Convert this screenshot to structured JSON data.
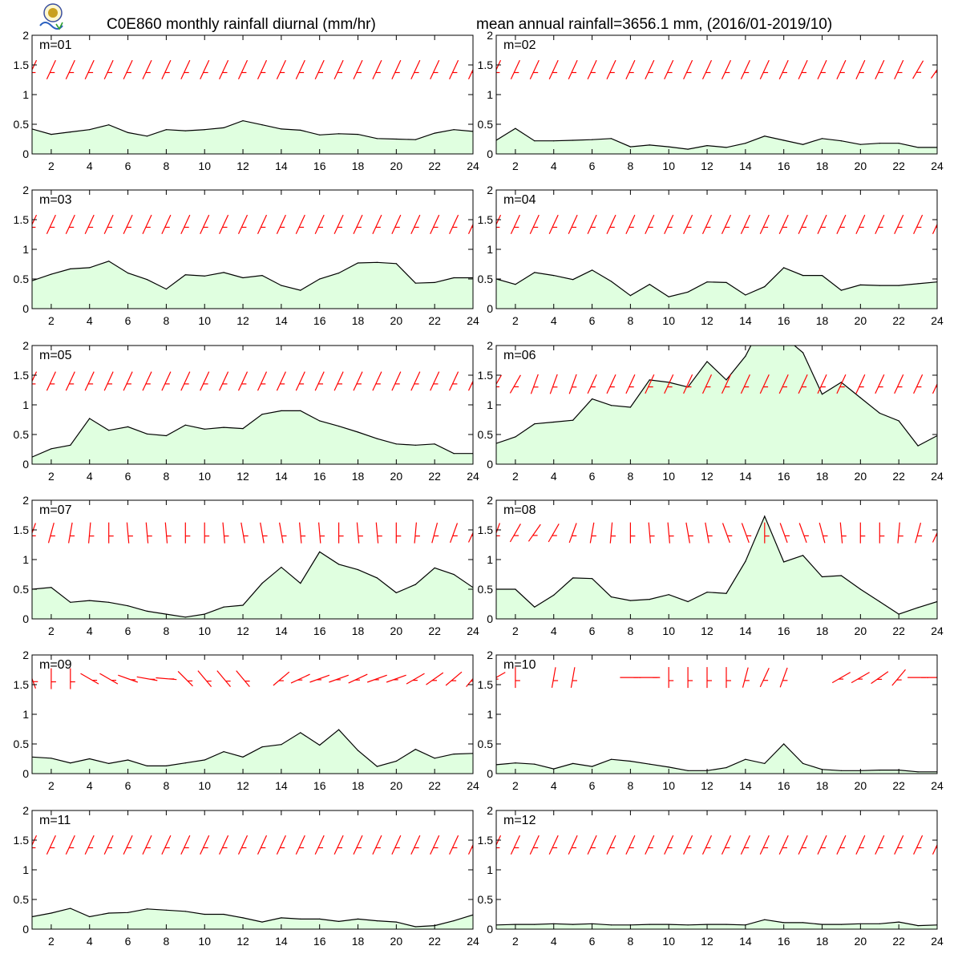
{
  "title_left": "C0E860 monthly rainfall diurnal (mm/hr)",
  "title_right": "mean annual rainfall=3656.1 mm, (2016/01-2019/10)",
  "chart_data": {
    "type": "area",
    "panel_count": 12,
    "x": [
      1,
      2,
      3,
      4,
      5,
      6,
      7,
      8,
      9,
      10,
      11,
      12,
      13,
      14,
      15,
      16,
      17,
      18,
      19,
      20,
      21,
      22,
      23,
      24
    ],
    "xticks": [
      2,
      4,
      6,
      8,
      10,
      12,
      14,
      16,
      18,
      20,
      22,
      24
    ],
    "ylim": [
      0,
      2
    ],
    "yticks": [
      0,
      0.5,
      1,
      1.5,
      2
    ],
    "ytick_labels": [
      "0",
      "0.5",
      "1",
      "1.5",
      "2"
    ],
    "fill_color": "#e0ffe0",
    "line_color": "#000000",
    "wind_barb_color": "#ff0000",
    "panels": [
      {
        "label": "m=01",
        "values": [
          0.42,
          0.33,
          0.37,
          0.41,
          0.49,
          0.36,
          0.3,
          0.41,
          0.39,
          0.41,
          0.44,
          0.56,
          0.49,
          0.42,
          0.4,
          0.32,
          0.34,
          0.33,
          0.26,
          0.25,
          0.24,
          0.35,
          0.41,
          0.38
        ],
        "barb_y": 1.42,
        "barb_angle": [
          25,
          25,
          25,
          25,
          25,
          25,
          25,
          25,
          25,
          25,
          25,
          25,
          25,
          25,
          25,
          25,
          25,
          25,
          25,
          25,
          25,
          25,
          25,
          25
        ]
      },
      {
        "label": "m=02",
        "values": [
          0.23,
          0.43,
          0.22,
          0.22,
          0.23,
          0.24,
          0.26,
          0.12,
          0.15,
          0.12,
          0.08,
          0.14,
          0.11,
          0.18,
          0.3,
          0.23,
          0.16,
          0.26,
          0.22,
          0.16,
          0.18,
          0.18,
          0.11,
          0.11
        ],
        "barb_y": 1.42,
        "barb_angle": [
          25,
          25,
          25,
          25,
          25,
          25,
          25,
          25,
          25,
          25,
          25,
          25,
          25,
          25,
          25,
          25,
          25,
          25,
          25,
          25,
          25,
          25,
          30,
          35
        ]
      },
      {
        "label": "m=03",
        "values": [
          0.47,
          0.58,
          0.67,
          0.69,
          0.8,
          0.6,
          0.49,
          0.33,
          0.57,
          0.55,
          0.61,
          0.52,
          0.56,
          0.39,
          0.31,
          0.5,
          0.6,
          0.77,
          0.78,
          0.76,
          0.43,
          0.44,
          0.52,
          0.52
        ],
        "barb_y": 1.42,
        "barb_angle": [
          25,
          25,
          25,
          25,
          25,
          25,
          25,
          25,
          25,
          25,
          25,
          25,
          25,
          25,
          25,
          25,
          25,
          25,
          25,
          25,
          25,
          25,
          25,
          25
        ]
      },
      {
        "label": "m=04",
        "values": [
          0.5,
          0.41,
          0.61,
          0.56,
          0.49,
          0.65,
          0.46,
          0.22,
          0.41,
          0.2,
          0.28,
          0.45,
          0.44,
          0.23,
          0.37,
          0.69,
          0.56,
          0.56,
          0.31,
          0.4,
          0.39,
          0.39,
          0.42,
          0.45
        ],
        "barb_y": 1.42,
        "barb_angle": [
          25,
          25,
          25,
          25,
          25,
          25,
          25,
          25,
          25,
          25,
          25,
          25,
          25,
          25,
          25,
          25,
          25,
          25,
          25,
          25,
          25,
          25,
          25,
          25
        ]
      },
      {
        "label": "m=05",
        "values": [
          0.12,
          0.26,
          0.32,
          0.77,
          0.57,
          0.63,
          0.51,
          0.48,
          0.66,
          0.59,
          0.62,
          0.6,
          0.84,
          0.9,
          0.9,
          0.73,
          0.64,
          0.54,
          0.43,
          0.34,
          0.32,
          0.34,
          0.18,
          0.18
        ],
        "barb_y": 1.4,
        "barb_angle": [
          25,
          25,
          25,
          25,
          25,
          25,
          25,
          25,
          25,
          25,
          25,
          25,
          25,
          25,
          25,
          25,
          25,
          25,
          25,
          25,
          25,
          25,
          25,
          25
        ]
      },
      {
        "label": "m=06",
        "values": [
          0.35,
          0.46,
          0.68,
          0.71,
          0.74,
          1.1,
          0.99,
          0.96,
          1.42,
          1.38,
          1.3,
          1.73,
          1.42,
          1.82,
          2.45,
          2.15,
          1.88,
          1.18,
          1.38,
          1.12,
          0.86,
          0.73,
          0.31,
          0.48
        ],
        "barb_y": 1.35,
        "barb_angle": [
          30,
          30,
          20,
          20,
          20,
          25,
          25,
          25,
          25,
          25,
          25,
          25,
          25,
          25,
          25,
          25,
          25,
          25,
          25,
          25,
          25,
          25,
          25,
          25
        ]
      },
      {
        "label": "m=07",
        "values": [
          0.5,
          0.53,
          0.28,
          0.31,
          0.28,
          0.22,
          0.13,
          0.08,
          0.03,
          0.08,
          0.2,
          0.23,
          0.6,
          0.87,
          0.6,
          1.13,
          0.92,
          0.83,
          0.69,
          0.44,
          0.58,
          0.86,
          0.75,
          0.53
        ],
        "barb_y": 1.45,
        "barb_angle": [
          20,
          15,
          10,
          5,
          0,
          -5,
          -5,
          -5,
          0,
          0,
          -5,
          -10,
          -10,
          -10,
          -5,
          -5,
          0,
          -5,
          -5,
          0,
          5,
          15,
          20,
          25
        ]
      },
      {
        "label": "m=08",
        "values": [
          0.5,
          0.5,
          0.2,
          0.4,
          0.69,
          0.68,
          0.37,
          0.31,
          0.33,
          0.41,
          0.29,
          0.45,
          0.43,
          0.97,
          1.73,
          0.96,
          1.07,
          0.71,
          0.73,
          0.5,
          0.29,
          0.08,
          0.19,
          0.29
        ],
        "barb_y": 1.45,
        "barb_angle": [
          20,
          30,
          35,
          30,
          20,
          10,
          5,
          0,
          -5,
          -5,
          -10,
          -10,
          -20,
          -20,
          0,
          -20,
          -20,
          -15,
          -5,
          0,
          0,
          5,
          15,
          25
        ]
      },
      {
        "label": "m=09",
        "values": [
          0.28,
          0.26,
          0.18,
          0.25,
          0.17,
          0.23,
          0.13,
          0.13,
          0.18,
          0.23,
          0.37,
          0.28,
          0.45,
          0.49,
          0.69,
          0.48,
          0.74,
          0.39,
          0.12,
          0.21,
          0.41,
          0.26,
          0.33,
          0.34
        ],
        "barb_y": 1.6,
        "barb_angle": [
          -20,
          0,
          0,
          -60,
          -60,
          -70,
          -80,
          -85,
          -45,
          -40,
          -40,
          -40,
          -90,
          50,
          65,
          70,
          70,
          65,
          70,
          70,
          60,
          55,
          50,
          40
        ],
        "barb_gap": [
          false,
          false,
          false,
          false,
          false,
          false,
          false,
          false,
          false,
          false,
          false,
          false,
          true,
          false,
          false,
          false,
          false,
          false,
          false,
          false,
          false,
          false,
          false,
          false
        ]
      },
      {
        "label": "m=10",
        "values": [
          0.15,
          0.18,
          0.16,
          0.08,
          0.17,
          0.12,
          0.24,
          0.21,
          0.16,
          0.11,
          0.05,
          0.05,
          0.1,
          0.24,
          0.17,
          0.5,
          0.17,
          0.07,
          0.05,
          0.05,
          0.06,
          0.06,
          0.03,
          0.03
        ],
        "barb_y": 1.62,
        "barb_angle": [
          60,
          0,
          0,
          10,
          10,
          10,
          0,
          -90,
          -90,
          0,
          0,
          0,
          0,
          15,
          25,
          20,
          0,
          0,
          60,
          60,
          55,
          40,
          -90,
          -90
        ],
        "barb_gap": [
          false,
          false,
          true,
          false,
          false,
          true,
          true,
          false,
          false,
          false,
          false,
          false,
          false,
          false,
          false,
          false,
          true,
          true,
          false,
          false,
          false,
          false,
          false,
          false
        ]
      },
      {
        "label": "m=11",
        "values": [
          0.21,
          0.27,
          0.35,
          0.21,
          0.27,
          0.28,
          0.34,
          0.32,
          0.3,
          0.25,
          0.25,
          0.19,
          0.12,
          0.19,
          0.17,
          0.17,
          0.13,
          0.17,
          0.14,
          0.12,
          0.04,
          0.06,
          0.14,
          0.24
        ],
        "barb_y": 1.42,
        "barb_angle": [
          25,
          25,
          25,
          25,
          25,
          25,
          25,
          25,
          25,
          25,
          25,
          25,
          25,
          25,
          25,
          25,
          25,
          25,
          25,
          25,
          25,
          25,
          25,
          25
        ]
      },
      {
        "label": "m=12",
        "values": [
          0.07,
          0.08,
          0.08,
          0.09,
          0.08,
          0.09,
          0.07,
          0.07,
          0.08,
          0.08,
          0.07,
          0.08,
          0.08,
          0.07,
          0.16,
          0.11,
          0.11,
          0.08,
          0.08,
          0.09,
          0.09,
          0.12,
          0.06,
          0.07
        ],
        "barb_y": 1.42,
        "barb_angle": [
          25,
          25,
          25,
          25,
          25,
          25,
          25,
          25,
          25,
          25,
          25,
          25,
          25,
          25,
          25,
          25,
          25,
          25,
          25,
          25,
          25,
          25,
          25,
          25
        ]
      }
    ]
  }
}
